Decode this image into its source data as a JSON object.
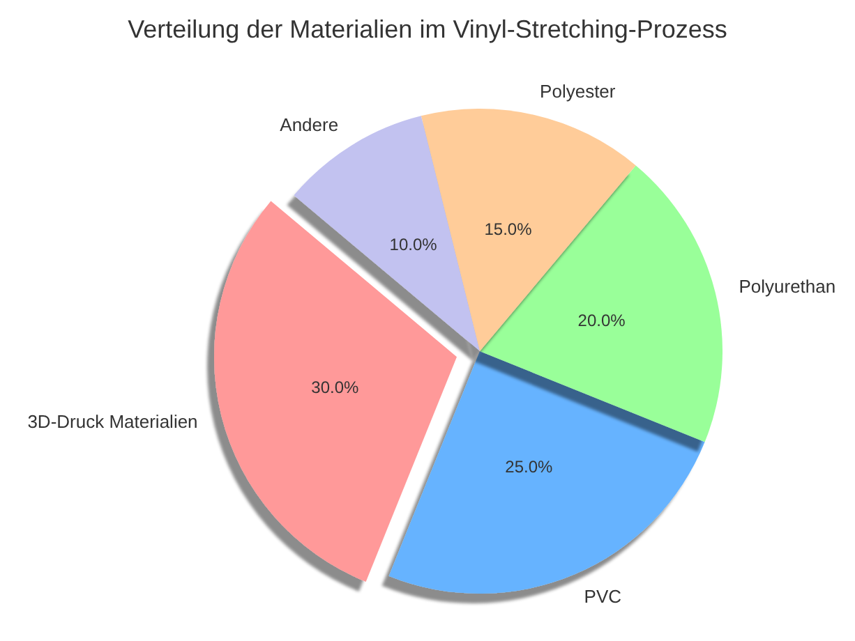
{
  "chart_data": {
    "type": "pie",
    "title": "Verteilung der Materialien im Vinyl-Stretching-Prozess",
    "categories": [
      "3D-Druck Materialien",
      "PVC",
      "Polyurethan",
      "Polyester",
      "Andere"
    ],
    "values": [
      30,
      25,
      20,
      15,
      10
    ],
    "colors": [
      "#ff9999",
      "#66b3ff",
      "#99ff99",
      "#ffcc99",
      "#c2c2f0"
    ],
    "value_labels": [
      "30.0%",
      "25.0%",
      "20.0%",
      "15.0%",
      "10.0%"
    ]
  }
}
